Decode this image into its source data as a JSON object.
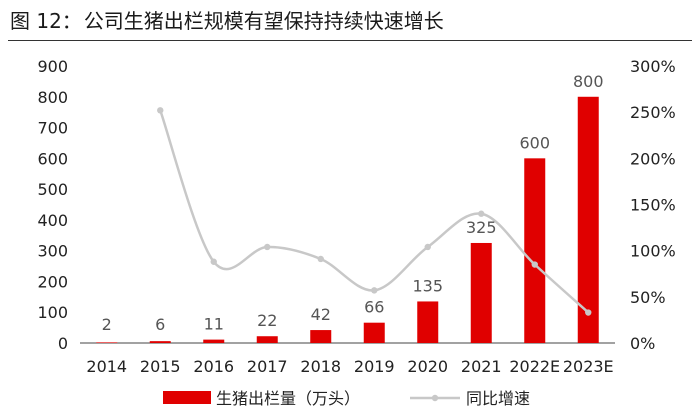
{
  "figure": {
    "number": "图 12：",
    "title": "公司生猪出栏规模有望保持持续快速增长"
  },
  "chart_data": {
    "type": "bar+line",
    "categories": [
      "2014",
      "2015",
      "2016",
      "2017",
      "2018",
      "2019",
      "2020",
      "2021",
      "2022E",
      "2023E"
    ],
    "series": [
      {
        "name": "生猪出栏量（万头）",
        "type": "bar",
        "axis": "left",
        "color": "#e00000",
        "values": [
          2,
          6,
          11,
          22,
          42,
          66,
          135,
          325,
          600,
          800
        ],
        "labels": [
          "2",
          "6",
          "11",
          "22",
          "42",
          "66",
          "135",
          "325",
          "600",
          "800"
        ]
      },
      {
        "name": "同比增速",
        "type": "line",
        "axis": "right",
        "color": "#c8c8c8",
        "values": [
          null,
          252,
          88,
          104,
          91,
          57,
          104,
          140,
          85,
          33
        ]
      }
    ],
    "y_left": {
      "min": 0,
      "max": 900,
      "ticks": [
        "0",
        "100",
        "200",
        "300",
        "400",
        "500",
        "600",
        "700",
        "800",
        "900"
      ]
    },
    "y_right": {
      "min": 0,
      "max": 300,
      "ticks": [
        "0%",
        "50%",
        "100%",
        "150%",
        "200%",
        "250%",
        "300%"
      ]
    },
    "legend_position": "bottom",
    "grid": false
  }
}
